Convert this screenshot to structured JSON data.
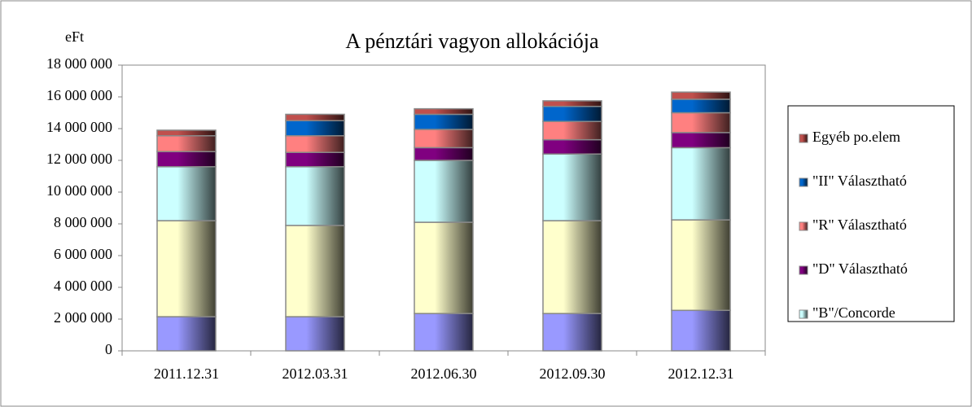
{
  "chart_data": {
    "type": "bar",
    "stacked": true,
    "title": "A pénztári vagyon allokációja",
    "y_label": "eFt",
    "categories": [
      "2011.12.31",
      "2012.03.31",
      "2012.06.30",
      "2012.09.30",
      "2012.12.31"
    ],
    "series": [
      {
        "color": "#9999ff",
        "values": [
          2150000,
          2150000,
          2350000,
          2350000,
          2550000
        ]
      },
      {
        "color": "#ffffcc",
        "values": [
          6050000,
          5750000,
          5750000,
          5850000,
          5700000
        ]
      },
      {
        "name": "\"B\"/Concorde",
        "color": "#ccffff",
        "values": [
          3400000,
          3700000,
          3900000,
          4200000,
          4550000
        ]
      },
      {
        "name": "\"D\" Választható",
        "color": "#800080",
        "values": [
          950000,
          900000,
          800000,
          900000,
          950000
        ]
      },
      {
        "name": "\"R\" Választható",
        "color": "#ff8080",
        "values": [
          1000000,
          1050000,
          1150000,
          1150000,
          1250000
        ]
      },
      {
        "name": "\"II\" Választható",
        "color": "#0066cc",
        "values": [
          0,
          950000,
          950000,
          950000,
          850000
        ]
      },
      {
        "name": "Egyéb po.elem",
        "color": "#c0504d",
        "values": [
          350000,
          400000,
          350000,
          350000,
          450000
        ]
      }
    ],
    "ylim": [
      0,
      18000000
    ],
    "yticks": [
      0,
      {
        "value": 2000000,
        "label": "2 000 000"
      },
      {
        "value": 4000000,
        "label": "4 000 000"
      },
      {
        "value": 6000000,
        "label": "6 000 000"
      },
      {
        "value": 8000000,
        "label": "8 000 000"
      },
      {
        "value": 10000000,
        "label": "10 000 000"
      },
      {
        "value": 12000000,
        "label": "12 000 000"
      },
      {
        "value": 14000000,
        "label": "14 000 000"
      },
      {
        "value": 16000000,
        "label": "16 000 000"
      },
      {
        "value": 18000000,
        "label": "18 000 000"
      }
    ],
    "legend": "right"
  }
}
